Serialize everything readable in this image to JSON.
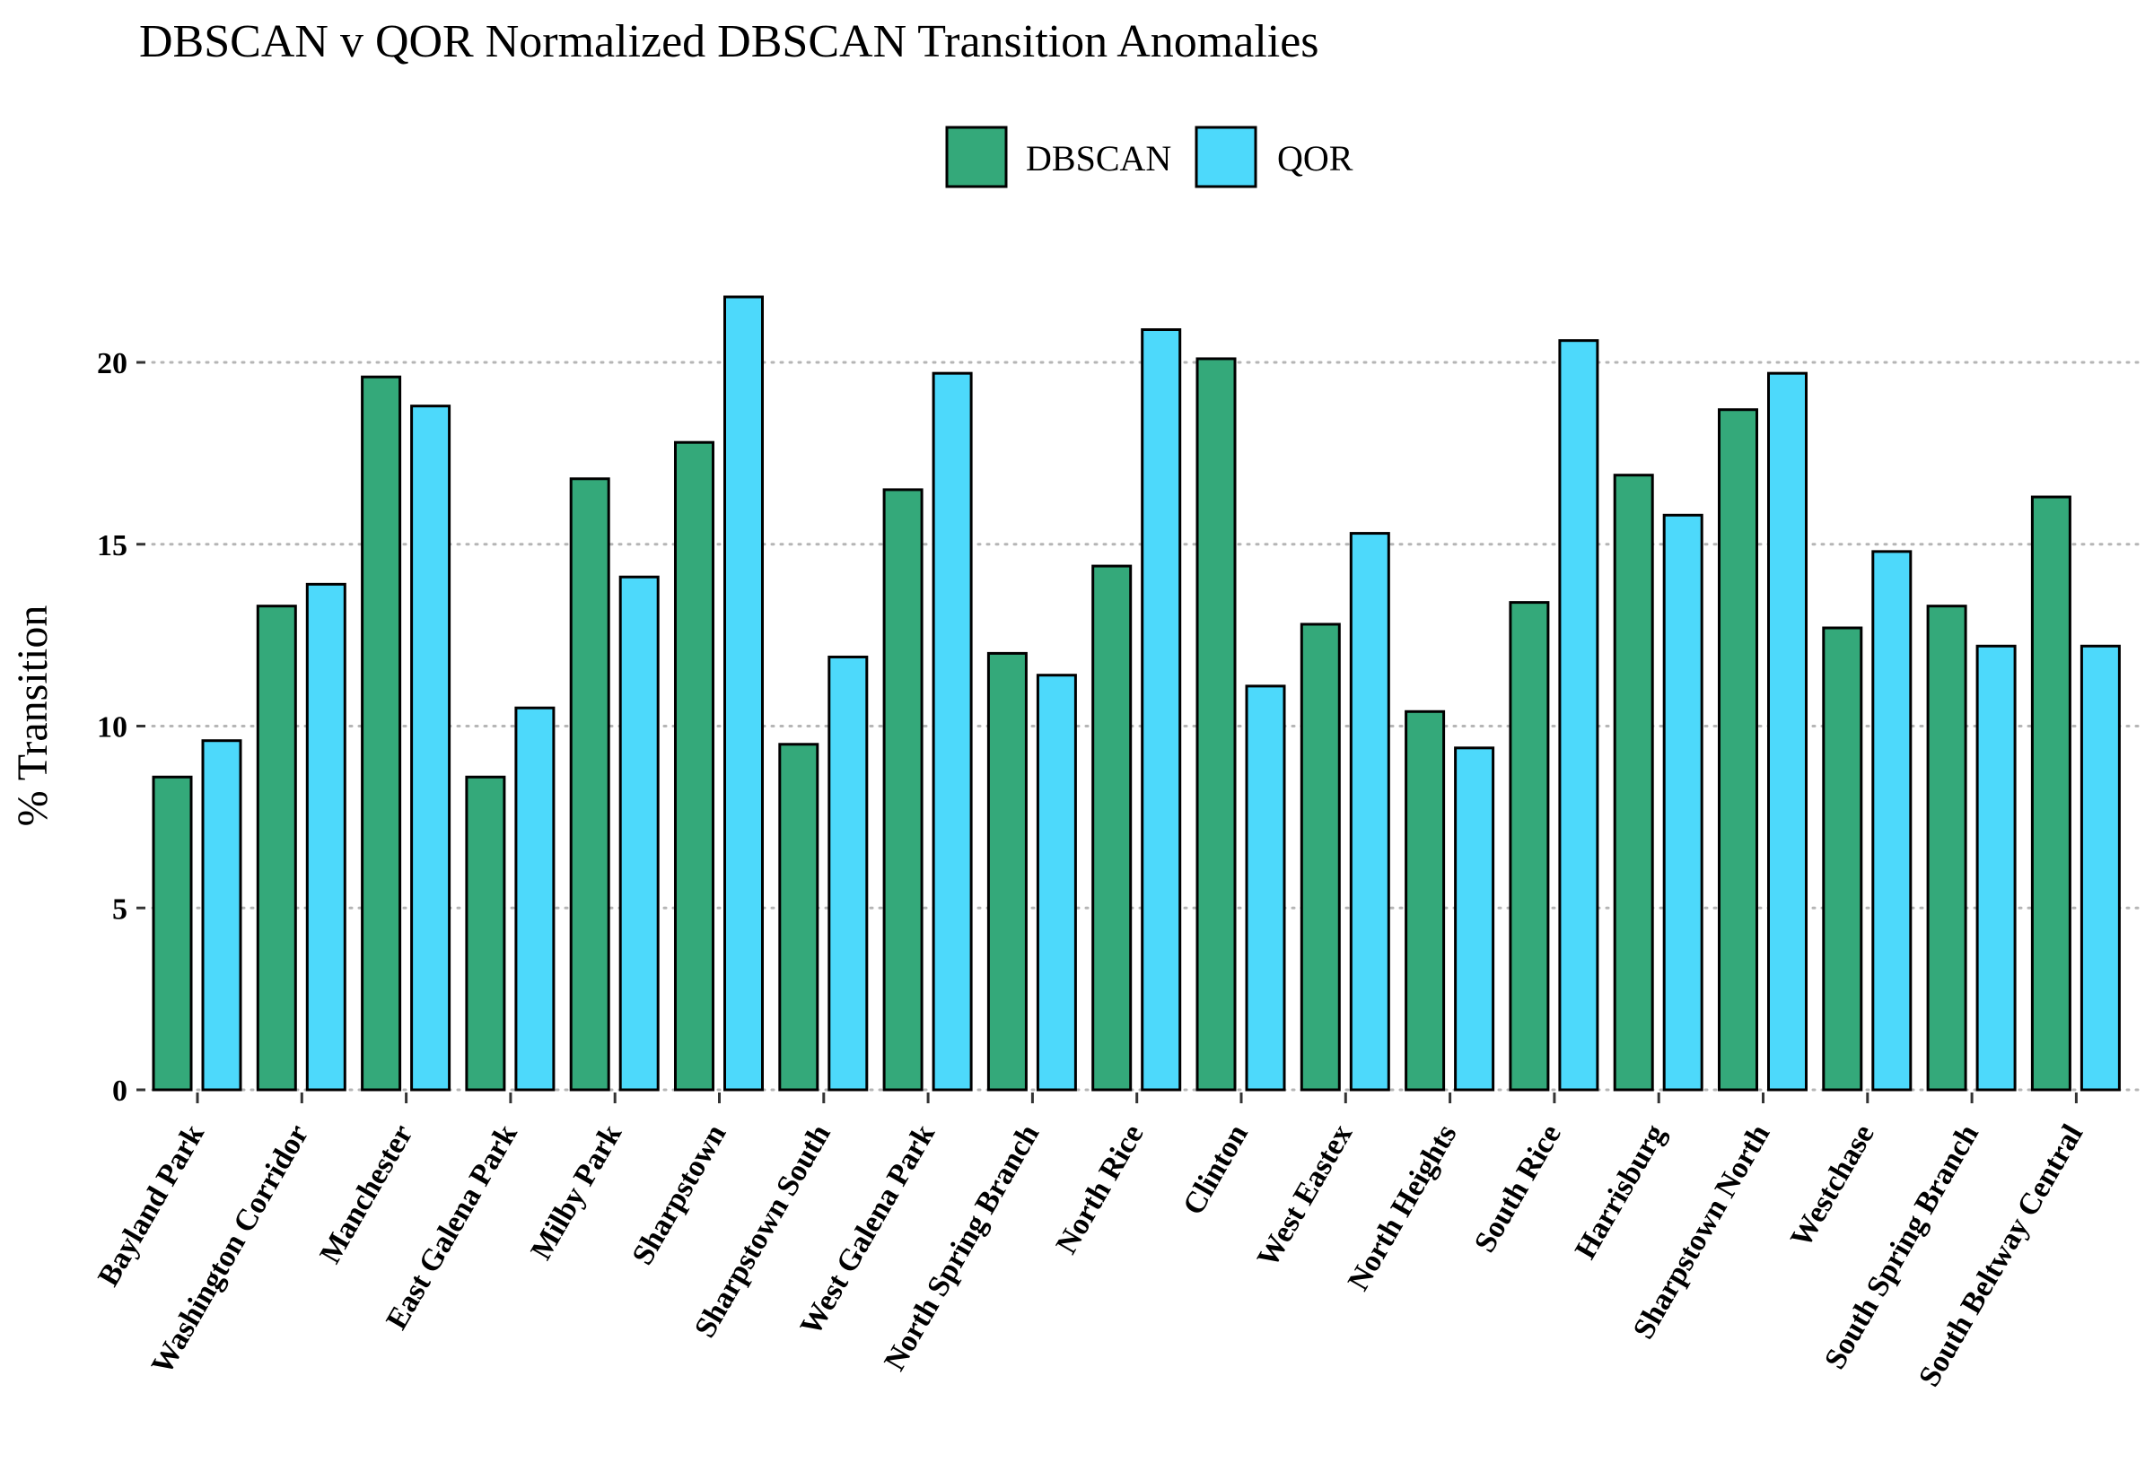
{
  "chart_data": {
    "type": "bar",
    "title": "DBSCAN v QOR Normalized DBSCAN Transition Anomalies",
    "xlabel": "",
    "ylabel": "% Transition",
    "ylim": [
      0,
      23
    ],
    "yticks": [
      0,
      5,
      10,
      15,
      20
    ],
    "grid": "horizontal dotted",
    "legend_position": "top-center",
    "categories": [
      "Bayland Park",
      "Washington Corridor",
      "Manchester",
      "East Galena Park",
      "Milby Park",
      "Sharpstown",
      "Sharpstown South",
      "West Galena Park",
      "North Spring Branch",
      "North Rice",
      "Clinton",
      "West Eastex",
      "North Heights",
      "South Rice",
      "Harrisburg",
      "Sharpstown North",
      "Westchase",
      "South Spring Branch",
      "South Beltway Central"
    ],
    "series": [
      {
        "name": "DBSCAN",
        "color": "#34a97a",
        "values": [
          8.6,
          13.3,
          19.6,
          8.6,
          16.8,
          17.8,
          9.5,
          16.5,
          12.0,
          14.4,
          20.1,
          12.8,
          10.4,
          13.4,
          16.9,
          18.7,
          12.7,
          13.3,
          16.3
        ]
      },
      {
        "name": "QOR",
        "color": "#4dd9fb",
        "values": [
          9.6,
          13.9,
          18.8,
          10.5,
          14.1,
          21.8,
          11.9,
          19.7,
          11.4,
          20.9,
          11.1,
          15.3,
          9.4,
          20.6,
          15.8,
          19.7,
          14.8,
          12.2,
          12.2
        ]
      }
    ]
  }
}
